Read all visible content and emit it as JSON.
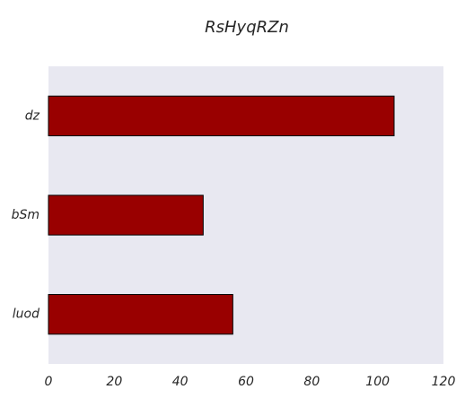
{
  "chart_data": {
    "type": "bar",
    "orientation": "horizontal",
    "title": "RsHyqRZn",
    "xlabel": "",
    "ylabel": "",
    "categories": [
      "dz",
      "bSm",
      "luod"
    ],
    "values": [
      105,
      47,
      56
    ],
    "xlim": [
      0,
      120
    ],
    "xticks": [
      0,
      20,
      40,
      60,
      80,
      100,
      120
    ],
    "grid": false,
    "legend": "none",
    "colors": {
      "bar": "#990000",
      "bar_edge": "#000000",
      "plot_background": "#e8e8f1",
      "text": "#262626"
    }
  }
}
